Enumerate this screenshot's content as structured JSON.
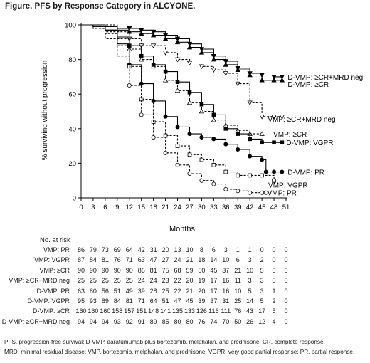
{
  "title": "Figure. PFS by Response Category in ALCYONE.",
  "chart_data": {
    "type": "line",
    "ylabel": "% surviving without progression",
    "xlabel": "Months",
    "xlim": [
      0,
      51
    ],
    "ylim": [
      0,
      100
    ],
    "x_ticks": [
      "0",
      "3",
      "6",
      "9",
      "12",
      "15",
      "18",
      "21",
      "24",
      "27",
      "30",
      "33",
      "36",
      "39",
      "42",
      "45",
      "48",
      "51"
    ],
    "y_ticks": [
      "0",
      "20",
      "40",
      "60",
      "80",
      "100"
    ],
    "series": [
      {
        "name": "D-VMP: ≥CR+MRD neg",
        "line": "solid",
        "marker": "filled-triangle-down",
        "points": [
          [
            0,
            100
          ],
          [
            3,
            100
          ],
          [
            6,
            99
          ],
          [
            9,
            98
          ],
          [
            12,
            98
          ],
          [
            15,
            97
          ],
          [
            18,
            96
          ],
          [
            21,
            94
          ],
          [
            24,
            92
          ],
          [
            27,
            89
          ],
          [
            30,
            86
          ],
          [
            33,
            82
          ],
          [
            36,
            79
          ],
          [
            39,
            75
          ],
          [
            42,
            72
          ],
          [
            45,
            71
          ],
          [
            48,
            70
          ],
          [
            50,
            70
          ]
        ]
      },
      {
        "name": "D-VMP: ≥CR",
        "line": "solid",
        "marker": "filled-triangle-up",
        "points": [
          [
            0,
            100
          ],
          [
            3,
            100
          ],
          [
            6,
            99
          ],
          [
            9,
            97
          ],
          [
            12,
            96
          ],
          [
            15,
            95
          ],
          [
            18,
            94
          ],
          [
            21,
            92
          ],
          [
            24,
            90
          ],
          [
            27,
            87
          ],
          [
            30,
            84
          ],
          [
            33,
            80
          ],
          [
            36,
            77
          ],
          [
            39,
            74
          ],
          [
            42,
            71
          ],
          [
            45,
            68
          ],
          [
            48,
            68
          ],
          [
            50,
            68
          ]
        ]
      },
      {
        "name": "VMP: ≥CR+MRD neg",
        "line": "dashed",
        "marker": "open-triangle-down",
        "points": [
          [
            0,
            100
          ],
          [
            3,
            100
          ],
          [
            6,
            100
          ],
          [
            9,
            96
          ],
          [
            12,
            92
          ],
          [
            15,
            88
          ],
          [
            18,
            88
          ],
          [
            21,
            84
          ],
          [
            24,
            80
          ],
          [
            27,
            78
          ],
          [
            30,
            76
          ],
          [
            33,
            74
          ],
          [
            36,
            72
          ],
          [
            39,
            66
          ],
          [
            42,
            55
          ],
          [
            45,
            47
          ],
          [
            48,
            47
          ],
          [
            50,
            47
          ]
        ]
      },
      {
        "name": "VMP: ≥CR",
        "line": "dashed",
        "marker": "open-triangle-up",
        "points": [
          [
            0,
            100
          ],
          [
            3,
            99
          ],
          [
            6,
            96
          ],
          [
            9,
            92
          ],
          [
            12,
            86
          ],
          [
            15,
            80
          ],
          [
            18,
            76
          ],
          [
            21,
            68
          ],
          [
            24,
            62
          ],
          [
            27,
            55
          ],
          [
            30,
            50
          ],
          [
            33,
            45
          ],
          [
            36,
            42
          ],
          [
            39,
            39
          ],
          [
            42,
            37
          ],
          [
            45,
            37
          ]
        ]
      },
      {
        "name": "D-VMP: VGPR",
        "line": "solid",
        "marker": "filled-square",
        "points": [
          [
            0,
            100
          ],
          [
            3,
            99
          ],
          [
            6,
            97
          ],
          [
            9,
            93
          ],
          [
            12,
            88
          ],
          [
            15,
            82
          ],
          [
            18,
            77
          ],
          [
            21,
            73
          ],
          [
            24,
            67
          ],
          [
            27,
            61
          ],
          [
            30,
            54
          ],
          [
            33,
            48
          ],
          [
            36,
            40
          ],
          [
            39,
            37
          ],
          [
            42,
            34
          ],
          [
            45,
            32
          ],
          [
            48,
            32
          ],
          [
            50,
            32
          ]
        ]
      },
      {
        "name": "D-VMP: PR",
        "line": "solid",
        "marker": "filled-circle",
        "points": [
          [
            0,
            100
          ],
          [
            3,
            99
          ],
          [
            6,
            97
          ],
          [
            9,
            89
          ],
          [
            12,
            77
          ],
          [
            15,
            66
          ],
          [
            18,
            56
          ],
          [
            21,
            47
          ],
          [
            24,
            41
          ],
          [
            27,
            37
          ],
          [
            30,
            35
          ],
          [
            33,
            34
          ],
          [
            36,
            31
          ],
          [
            39,
            28
          ],
          [
            42,
            24
          ],
          [
            45,
            22
          ],
          [
            46,
            15
          ],
          [
            48,
            15
          ],
          [
            50,
            15
          ]
        ]
      },
      {
        "name": "VMP: VGPR",
        "line": "dashed",
        "marker": "open-square",
        "points": [
          [
            0,
            100
          ],
          [
            3,
            99
          ],
          [
            6,
            95
          ],
          [
            9,
            88
          ],
          [
            12,
            76
          ],
          [
            15,
            57
          ],
          [
            18,
            44
          ],
          [
            21,
            36
          ],
          [
            24,
            30
          ],
          [
            27,
            25
          ],
          [
            30,
            22
          ],
          [
            33,
            19
          ],
          [
            36,
            15
          ],
          [
            39,
            13
          ],
          [
            42,
            13
          ],
          [
            45,
            13
          ],
          [
            48,
            10
          ]
        ]
      },
      {
        "name": "VMP: PR",
        "line": "dashed",
        "marker": "open-circle",
        "points": [
          [
            0,
            100
          ],
          [
            3,
            98
          ],
          [
            6,
            92
          ],
          [
            9,
            82
          ],
          [
            12,
            65
          ],
          [
            15,
            48
          ],
          [
            18,
            35
          ],
          [
            21,
            26
          ],
          [
            24,
            19
          ],
          [
            27,
            14
          ],
          [
            30,
            10
          ],
          [
            33,
            8
          ],
          [
            36,
            5
          ],
          [
            39,
            4
          ],
          [
            42,
            3
          ],
          [
            45,
            3
          ],
          [
            46,
            3
          ]
        ]
      }
    ]
  },
  "risk_table": {
    "heading": "No. at risk",
    "rows": [
      {
        "label": "VMP: PR",
        "values": [
          "86",
          "79",
          "73",
          "69",
          "64",
          "42",
          "31",
          "20",
          "13",
          "10",
          "8",
          "6",
          "3",
          "1",
          "1",
          "0",
          "0",
          "0"
        ]
      },
      {
        "label": "VMP: VGPR",
        "values": [
          "87",
          "84",
          "81",
          "76",
          "71",
          "63",
          "47",
          "27",
          "24",
          "21",
          "18",
          "14",
          "10",
          "6",
          "3",
          "2",
          "0",
          "0"
        ]
      },
      {
        "label": "VMP: ≥CR",
        "values": [
          "90",
          "90",
          "90",
          "90",
          "90",
          "86",
          "81",
          "75",
          "68",
          "59",
          "50",
          "45",
          "37",
          "21",
          "10",
          "5",
          "0",
          "0"
        ]
      },
      {
        "label": "VMP: ≥CR+MRD neg",
        "values": [
          "25",
          "25",
          "25",
          "25",
          "25",
          "24",
          "24",
          "23",
          "22",
          "20",
          "19",
          "17",
          "16",
          "11",
          "3",
          "3",
          "0",
          "0"
        ]
      },
      {
        "label": "D-VMP: PR",
        "values": [
          "63",
          "60",
          "56",
          "51",
          "49",
          "39",
          "28",
          "25",
          "22",
          "21",
          "20",
          "17",
          "16",
          "10",
          "5",
          "3",
          "1",
          "0"
        ]
      },
      {
        "label": "D-VMP: VGPR",
        "values": [
          "95",
          "93",
          "89",
          "84",
          "81",
          "71",
          "64",
          "51",
          "47",
          "45",
          "39",
          "37",
          "31",
          "25",
          "14",
          "5",
          "2",
          "0"
        ]
      },
      {
        "label": "D-VMP: ≥CR",
        "values": [
          "160",
          "160",
          "160",
          "158",
          "157",
          "151",
          "148",
          "141",
          "135",
          "133",
          "126",
          "116",
          "111",
          "76",
          "43",
          "17",
          "5",
          "0"
        ]
      },
      {
        "label": "D-VMP: ≥CR+MRD neg",
        "values": [
          "94",
          "94",
          "94",
          "93",
          "92",
          "91",
          "89",
          "85",
          "80",
          "80",
          "76",
          "74",
          "70",
          "50",
          "26",
          "12",
          "4",
          "0"
        ]
      }
    ]
  },
  "footnote": {
    "line1": "PFS, progression-free survival; D-VMP, daratumumab plus bortezomib, melphalan, and prednisone; CR, complete response;",
    "line2": "MRD, minimal residual disease; VMP, bortezomib, melphalan, and prednisone; VGPR, very good partial response; PR, partial response."
  }
}
